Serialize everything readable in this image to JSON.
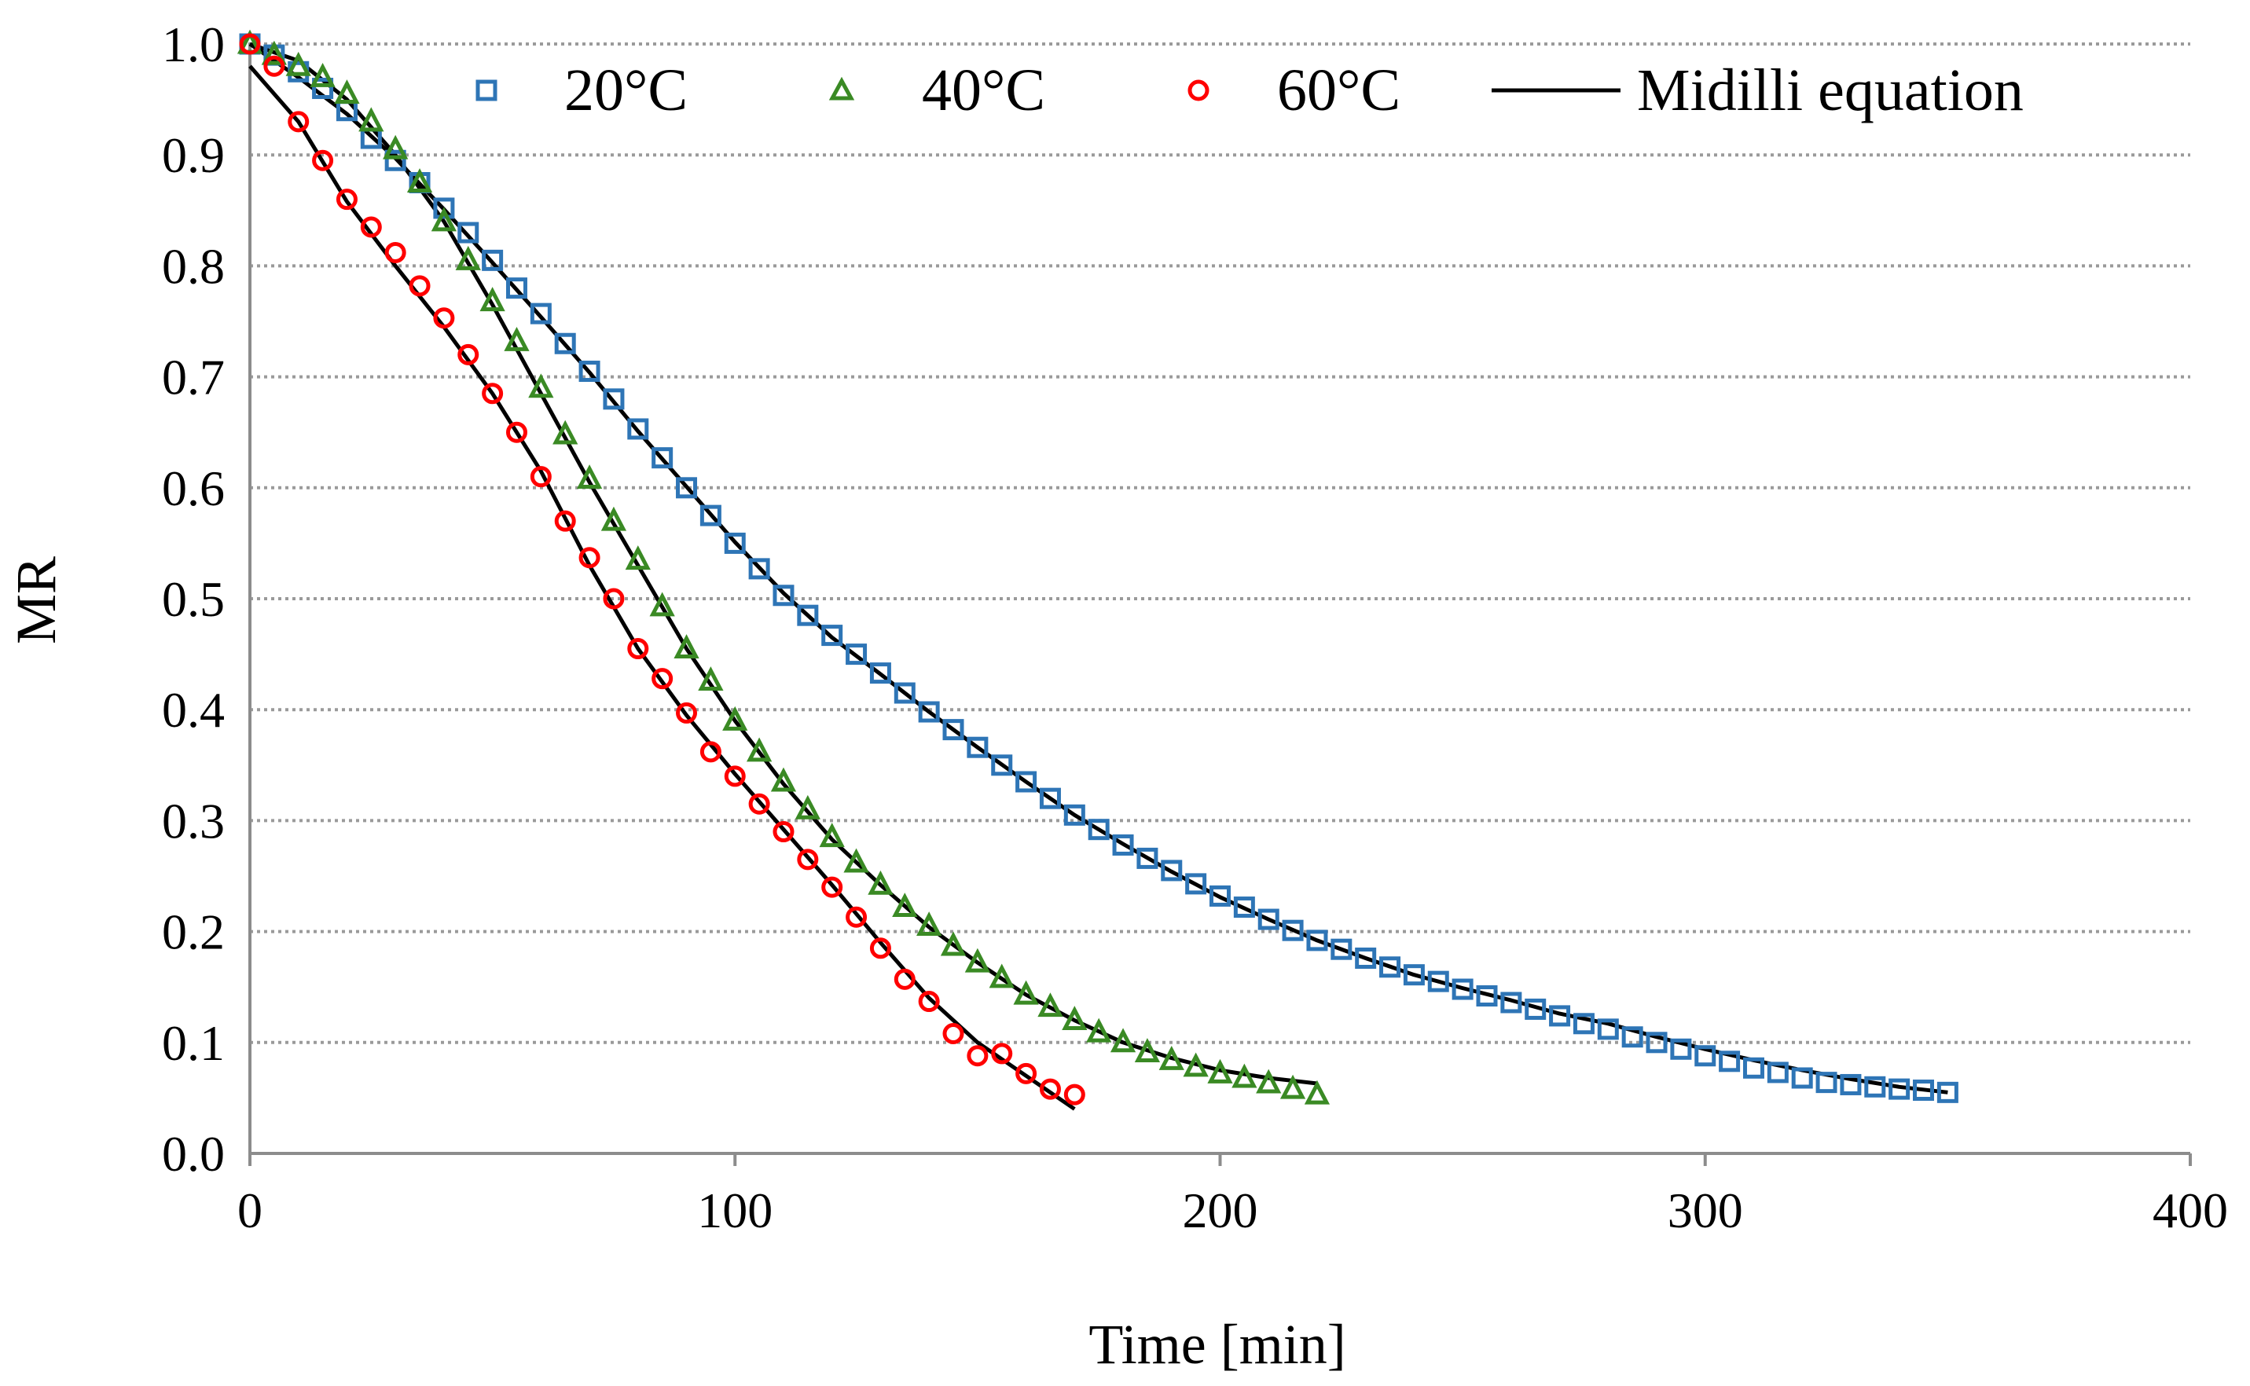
{
  "chart_data": {
    "type": "scatter",
    "title": "",
    "xlabel": "Time [min]",
    "ylabel": "MR",
    "xlim": [
      0,
      400
    ],
    "ylim": [
      0,
      1.0
    ],
    "xticks": [
      0,
      100,
      200,
      300,
      400
    ],
    "yticks": [
      0,
      0.1,
      0.2,
      0.3,
      0.4,
      0.5,
      0.6,
      0.7,
      0.8,
      0.9,
      1.0
    ],
    "xtick_labels": [
      "0",
      "100",
      "200",
      "300",
      "400"
    ],
    "ytick_labels": [
      "0.0",
      "0.1",
      "0.2",
      "0.3",
      "0.4",
      "0.5",
      "0.6",
      "0.7",
      "0.8",
      "0.9",
      "1.0"
    ],
    "grid": "horizontal-dotted",
    "legend_position": "top",
    "series": [
      {
        "name": "20°C",
        "marker": "square",
        "color": "#2E75B6",
        "x": [
          0,
          5,
          10,
          15,
          20,
          25,
          30,
          35,
          40,
          45,
          50,
          55,
          60,
          65,
          70,
          75,
          80,
          85,
          90,
          95,
          100,
          105,
          110,
          115,
          120,
          125,
          130,
          135,
          140,
          145,
          150,
          155,
          160,
          165,
          170,
          175,
          180,
          185,
          190,
          195,
          200,
          205,
          210,
          215,
          220,
          225,
          230,
          235,
          240,
          245,
          250,
          255,
          260,
          265,
          270,
          275,
          280,
          285,
          290,
          295,
          300,
          305,
          310,
          315,
          320,
          325,
          330,
          335,
          340,
          345,
          350
        ],
        "y": [
          1.0,
          0.99,
          0.975,
          0.96,
          0.94,
          0.915,
          0.895,
          0.875,
          0.852,
          0.83,
          0.805,
          0.78,
          0.757,
          0.73,
          0.705,
          0.68,
          0.653,
          0.627,
          0.6,
          0.575,
          0.55,
          0.527,
          0.503,
          0.485,
          0.467,
          0.45,
          0.433,
          0.415,
          0.398,
          0.382,
          0.366,
          0.35,
          0.335,
          0.32,
          0.305,
          0.292,
          0.278,
          0.266,
          0.255,
          0.243,
          0.232,
          0.222,
          0.211,
          0.201,
          0.192,
          0.184,
          0.176,
          0.168,
          0.161,
          0.155,
          0.148,
          0.142,
          0.136,
          0.13,
          0.124,
          0.117,
          0.112,
          0.105,
          0.1,
          0.094,
          0.088,
          0.083,
          0.077,
          0.073,
          0.068,
          0.064,
          0.062,
          0.06,
          0.058,
          0.057,
          0.055
        ]
      },
      {
        "name": "40°C",
        "marker": "triangle",
        "color": "#3A8A24",
        "x": [
          0,
          5,
          10,
          15,
          20,
          25,
          30,
          35,
          40,
          45,
          50,
          55,
          60,
          65,
          70,
          75,
          80,
          85,
          90,
          95,
          100,
          105,
          110,
          115,
          120,
          125,
          130,
          135,
          140,
          145,
          150,
          155,
          160,
          165,
          170,
          175,
          180,
          185,
          190,
          195,
          200,
          205,
          210,
          215,
          220
        ],
        "y": [
          1.0,
          0.99,
          0.98,
          0.97,
          0.955,
          0.93,
          0.905,
          0.875,
          0.84,
          0.805,
          0.768,
          0.732,
          0.69,
          0.648,
          0.608,
          0.57,
          0.535,
          0.493,
          0.455,
          0.426,
          0.39,
          0.362,
          0.335,
          0.31,
          0.285,
          0.262,
          0.242,
          0.222,
          0.205,
          0.187,
          0.172,
          0.158,
          0.143,
          0.132,
          0.12,
          0.109,
          0.1,
          0.091,
          0.084,
          0.078,
          0.072,
          0.068,
          0.063,
          0.058,
          0.053
        ]
      },
      {
        "name": "60°C",
        "marker": "circle",
        "color": "#FF0000",
        "x": [
          0,
          5,
          10,
          15,
          20,
          25,
          30,
          35,
          40,
          45,
          50,
          55,
          60,
          65,
          70,
          75,
          80,
          85,
          90,
          95,
          100,
          105,
          110,
          115,
          120,
          125,
          130,
          135,
          140,
          145,
          150,
          155,
          160,
          165,
          170
        ],
        "y": [
          1.0,
          0.98,
          0.93,
          0.895,
          0.86,
          0.835,
          0.812,
          0.782,
          0.753,
          0.72,
          0.685,
          0.65,
          0.61,
          0.57,
          0.537,
          0.5,
          0.455,
          0.428,
          0.397,
          0.362,
          0.34,
          0.315,
          0.29,
          0.265,
          0.24,
          0.213,
          0.185,
          0.157,
          0.137,
          0.108,
          0.088,
          0.09,
          0.072,
          0.058,
          0.053
        ]
      },
      {
        "name": "Midilli equation",
        "marker": "line",
        "color": "#000000",
        "curves": [
          {
            "x": [
              0,
              10,
              20,
              30,
              40,
              50,
              60,
              70,
              80,
              90,
              100,
              110,
              120,
              130,
              140,
              150,
              160,
              170,
              180,
              190,
              200,
              210,
              220,
              230,
              240,
              250,
              260,
              270,
              280,
              290,
              300,
              310,
              320,
              330,
              340,
              350
            ],
            "y": [
              1.0,
              0.97,
              0.937,
              0.897,
              0.851,
              0.803,
              0.754,
              0.704,
              0.651,
              0.601,
              0.551,
              0.505,
              0.465,
              0.432,
              0.398,
              0.366,
              0.335,
              0.305,
              0.279,
              0.254,
              0.231,
              0.211,
              0.192,
              0.176,
              0.161,
              0.149,
              0.138,
              0.126,
              0.117,
              0.105,
              0.094,
              0.084,
              0.075,
              0.067,
              0.06,
              0.055
            ]
          },
          {
            "x": [
              0,
              10,
              20,
              30,
              40,
              50,
              60,
              70,
              80,
              90,
              100,
              110,
              120,
              130,
              140,
              150,
              160,
              170,
              180,
              190,
              200,
              210,
              220
            ],
            "y": [
              1.0,
              0.985,
              0.95,
              0.9,
              0.84,
              0.765,
              0.685,
              0.605,
              0.53,
              0.455,
              0.39,
              0.333,
              0.283,
              0.242,
              0.204,
              0.172,
              0.143,
              0.12,
              0.1,
              0.086,
              0.075,
              0.068,
              0.063
            ]
          },
          {
            "x": [
              0,
              10,
              20,
              30,
              40,
              50,
              60,
              70,
              80,
              90,
              100,
              110,
              120,
              130,
              140,
              150,
              160,
              170
            ],
            "y": [
              0.98,
              0.93,
              0.858,
              0.8,
              0.745,
              0.685,
              0.615,
              0.53,
              0.455,
              0.395,
              0.342,
              0.292,
              0.242,
              0.19,
              0.14,
              0.1,
              0.07,
              0.04
            ]
          }
        ]
      }
    ]
  }
}
